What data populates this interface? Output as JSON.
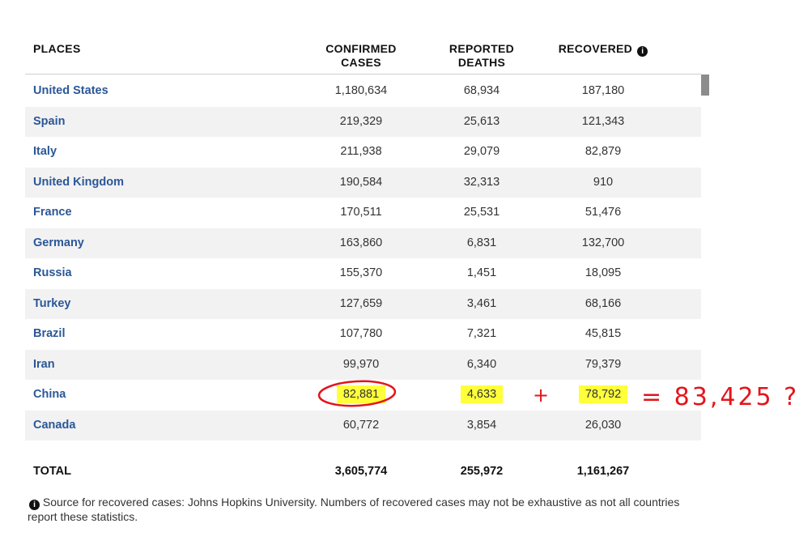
{
  "header": {
    "places": "PLACES",
    "confirmed": [
      "CONFIRMED",
      "CASES"
    ],
    "deaths": [
      "REPORTED",
      "DEATHS"
    ],
    "recovered": "RECOVERED",
    "info_icon": "info-icon"
  },
  "rows": [
    {
      "place": "United States",
      "confirmed": "1,180,634",
      "deaths": "68,934",
      "recovered": "187,180"
    },
    {
      "place": "Spain",
      "confirmed": "219,329",
      "deaths": "25,613",
      "recovered": "121,343"
    },
    {
      "place": "Italy",
      "confirmed": "211,938",
      "deaths": "29,079",
      "recovered": "82,879"
    },
    {
      "place": "United Kingdom",
      "confirmed": "190,584",
      "deaths": "32,313",
      "recovered": "910"
    },
    {
      "place": "France",
      "confirmed": "170,511",
      "deaths": "25,531",
      "recovered": "51,476"
    },
    {
      "place": "Germany",
      "confirmed": "163,860",
      "deaths": "6,831",
      "recovered": "132,700"
    },
    {
      "place": "Russia",
      "confirmed": "155,370",
      "deaths": "1,451",
      "recovered": "18,095"
    },
    {
      "place": "Turkey",
      "confirmed": "127,659",
      "deaths": "3,461",
      "recovered": "68,166"
    },
    {
      "place": "Brazil",
      "confirmed": "107,780",
      "deaths": "7,321",
      "recovered": "45,815"
    },
    {
      "place": "Iran",
      "confirmed": "99,970",
      "deaths": "6,340",
      "recovered": "79,379"
    },
    {
      "place": "China",
      "confirmed": "82,881",
      "deaths": "4,633",
      "recovered": "78,792"
    },
    {
      "place": "Canada",
      "confirmed": "60,772",
      "deaths": "3,854",
      "recovered": "26,030"
    }
  ],
  "total": {
    "label": "TOTAL",
    "confirmed": "3,605,774",
    "deaths": "255,972",
    "recovered": "1,161,267"
  },
  "footnote": "Source for recovered cases: Johns Hopkins University. Numbers of recovered cases may not be exhaustive as not all countries report these statistics.",
  "annotation": {
    "plus": "+",
    "result": "= 83,425 ?",
    "ink_color": "#e3141b",
    "highlight_color": "#ffff3a"
  },
  "colors": {
    "link": "#2b5797",
    "stripe": "#f2f2f2"
  }
}
